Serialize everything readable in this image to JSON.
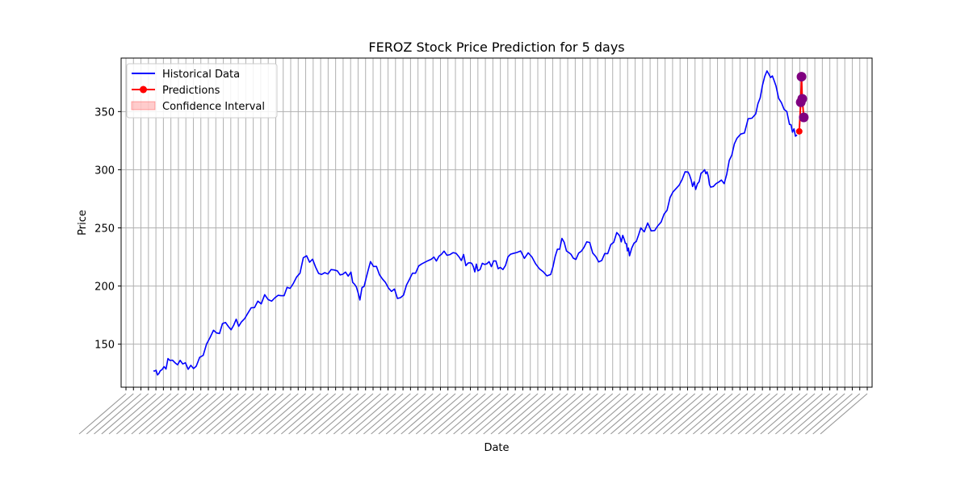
{
  "chart_data": {
    "type": "line",
    "title": "FEROZ Stock Price Prediction for 5 days",
    "xlabel": "Date",
    "ylabel": "Price",
    "ylim": [
      113,
      396
    ],
    "yticks": [
      150,
      200,
      250,
      300,
      350
    ],
    "xlim": [
      0,
      1
    ],
    "grid": true,
    "legend_position": "top-left",
    "legend": [
      {
        "label": "Historical Data",
        "kind": "line",
        "color": "#0000ff"
      },
      {
        "label": "Predictions",
        "kind": "line-marker",
        "color": "#ff0000"
      },
      {
        "label": "Confidence Interval",
        "kind": "patch",
        "color": "#ff0000"
      }
    ],
    "historical": {
      "name": "Historical Data",
      "color": "#0000ff",
      "x": [
        0.043,
        0.052,
        0.065,
        0.082,
        0.1,
        0.123,
        0.143,
        0.16,
        0.182,
        0.205,
        0.225,
        0.247,
        0.267,
        0.288,
        0.306,
        0.318,
        0.332,
        0.352,
        0.372,
        0.392,
        0.413,
        0.43,
        0.45,
        0.465,
        0.475,
        0.49,
        0.505,
        0.522,
        0.547,
        0.572,
        0.587,
        0.602,
        0.62,
        0.64,
        0.66,
        0.67,
        0.677,
        0.692,
        0.715,
        0.735,
        0.755,
        0.765,
        0.777,
        0.785,
        0.803,
        0.82,
        0.845,
        0.86,
        0.872,
        0.89,
        0.9
      ],
      "y": [
        127,
        127,
        136,
        133,
        131,
        162,
        165,
        169,
        187,
        190,
        198,
        226,
        210,
        213,
        212,
        188,
        221,
        203,
        190,
        211,
        223,
        230,
        225,
        220,
        213,
        221,
        216,
        228,
        225,
        210,
        241,
        224,
        238,
        222,
        246,
        240,
        226,
        250,
        252,
        281,
        298,
        283,
        300,
        285,
        288,
        327,
        348,
        385,
        372,
        339,
        330
      ],
      "points_count": 248
    },
    "predictions": {
      "name": "Predictions",
      "color": "#ff0000",
      "marker_color": "#800080",
      "points": [
        {
          "x": 0.903,
          "y": 333
        },
        {
          "x": 0.905,
          "y": 358
        },
        {
          "x": 0.906,
          "y": 380
        },
        {
          "x": 0.907,
          "y": 361
        },
        {
          "x": 0.909,
          "y": 345
        }
      ]
    }
  },
  "tick_label_note": "x tick labels are dense overlapping dates (illegible)"
}
